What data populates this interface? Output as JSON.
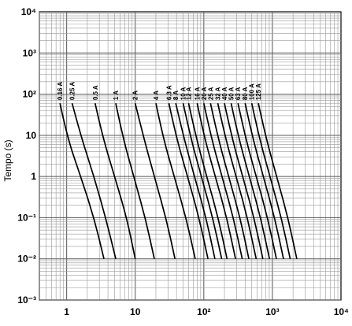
{
  "chart_data": {
    "type": "line",
    "title": "",
    "xlabel": "",
    "ylabel": "Tempo (s)",
    "xscale": "log",
    "yscale": "log",
    "xlim": [
      0.4,
      10000
    ],
    "ylim": [
      0.001,
      10000
    ],
    "grid": true,
    "x_tick_labels": [
      "1",
      "10",
      "10²",
      "10³",
      "10⁴"
    ],
    "y_tick_labels": [
      "10⁴",
      "10³",
      "10²",
      "10",
      "1",
      "10⁻¹",
      "10⁻²",
      "10⁻³"
    ],
    "series": [
      {
        "name": "0.16 A",
        "points": [
          [
            0.8,
            60
          ],
          [
            1.0,
            10
          ],
          [
            1.6,
            1
          ],
          [
            2.5,
            0.1
          ],
          [
            3.5,
            0.01
          ]
        ]
      },
      {
        "name": "0.25 A",
        "points": [
          [
            1.2,
            60
          ],
          [
            1.6,
            10
          ],
          [
            2.5,
            1
          ],
          [
            3.7,
            0.1
          ],
          [
            5.2,
            0.01
          ]
        ]
      },
      {
        "name": "0.5 A",
        "points": [
          [
            2.6,
            60
          ],
          [
            3.3,
            10
          ],
          [
            5,
            1
          ],
          [
            7.5,
            0.1
          ],
          [
            10,
            0.01
          ]
        ]
      },
      {
        "name": "1 A",
        "points": [
          [
            5.2,
            60
          ],
          [
            6.5,
            10
          ],
          [
            9.5,
            1
          ],
          [
            14,
            0.1
          ],
          [
            19,
            0.01
          ]
        ]
      },
      {
        "name": "2 A",
        "points": [
          [
            10,
            60
          ],
          [
            13,
            10
          ],
          [
            19,
            1
          ],
          [
            28,
            0.1
          ],
          [
            38,
            0.01
          ]
        ]
      },
      {
        "name": "4 A",
        "points": [
          [
            20,
            60
          ],
          [
            25,
            10
          ],
          [
            37,
            1
          ],
          [
            55,
            0.1
          ],
          [
            75,
            0.01
          ]
        ]
      },
      {
        "name": "6.3 A",
        "points": [
          [
            31,
            60
          ],
          [
            39,
            10
          ],
          [
            58,
            1
          ],
          [
            85,
            0.1
          ],
          [
            115,
            0.01
          ]
        ]
      },
      {
        "name": "8 A",
        "points": [
          [
            39,
            60
          ],
          [
            50,
            10
          ],
          [
            73,
            1
          ],
          [
            108,
            0.1
          ],
          [
            145,
            0.01
          ]
        ]
      },
      {
        "name": "10 A",
        "points": [
          [
            50,
            60
          ],
          [
            63,
            10
          ],
          [
            92,
            1
          ],
          [
            135,
            0.1
          ],
          [
            182,
            0.01
          ]
        ]
      },
      {
        "name": "12 A",
        "points": [
          [
            60,
            60
          ],
          [
            76,
            10
          ],
          [
            110,
            1
          ],
          [
            162,
            0.1
          ],
          [
            218,
            0.01
          ]
        ]
      },
      {
        "name": "16 A",
        "points": [
          [
            80,
            60
          ],
          [
            100,
            10
          ],
          [
            147,
            1
          ],
          [
            216,
            0.1
          ],
          [
            290,
            0.01
          ]
        ]
      },
      {
        "name": "20 A",
        "points": [
          [
            100,
            60
          ],
          [
            126,
            10
          ],
          [
            184,
            1
          ],
          [
            270,
            0.1
          ],
          [
            363,
            0.01
          ]
        ]
      },
      {
        "name": "25 A",
        "points": [
          [
            125,
            60
          ],
          [
            158,
            10
          ],
          [
            230,
            1
          ],
          [
            338,
            0.1
          ],
          [
            454,
            0.01
          ]
        ]
      },
      {
        "name": "32 A",
        "points": [
          [
            160,
            60
          ],
          [
            202,
            10
          ],
          [
            295,
            1
          ],
          [
            432,
            0.1
          ],
          [
            580,
            0.01
          ]
        ]
      },
      {
        "name": "40 A",
        "points": [
          [
            200,
            60
          ],
          [
            252,
            10
          ],
          [
            368,
            1
          ],
          [
            540,
            0.1
          ],
          [
            726,
            0.01
          ]
        ]
      },
      {
        "name": "50 A",
        "points": [
          [
            250,
            60
          ],
          [
            315,
            10
          ],
          [
            460,
            1
          ],
          [
            675,
            0.1
          ],
          [
            907,
            0.01
          ]
        ]
      },
      {
        "name": "63 A",
        "points": [
          [
            315,
            60
          ],
          [
            397,
            10
          ],
          [
            580,
            1
          ],
          [
            851,
            0.1
          ],
          [
            1143,
            0.01
          ]
        ]
      },
      {
        "name": "80 A",
        "points": [
          [
            400,
            60
          ],
          [
            504,
            10
          ],
          [
            736,
            1
          ],
          [
            1080,
            0.1
          ],
          [
            1452,
            0.01
          ]
        ]
      },
      {
        "name": "100 A",
        "points": [
          [
            500,
            60
          ],
          [
            630,
            10
          ],
          [
            920,
            1
          ],
          [
            1350,
            0.1
          ],
          [
            1815,
            0.01
          ]
        ]
      },
      {
        "name": "125 A",
        "points": [
          [
            625,
            60
          ],
          [
            788,
            10
          ],
          [
            1150,
            1
          ],
          [
            1688,
            0.1
          ],
          [
            2268,
            0.01
          ]
        ]
      }
    ]
  }
}
